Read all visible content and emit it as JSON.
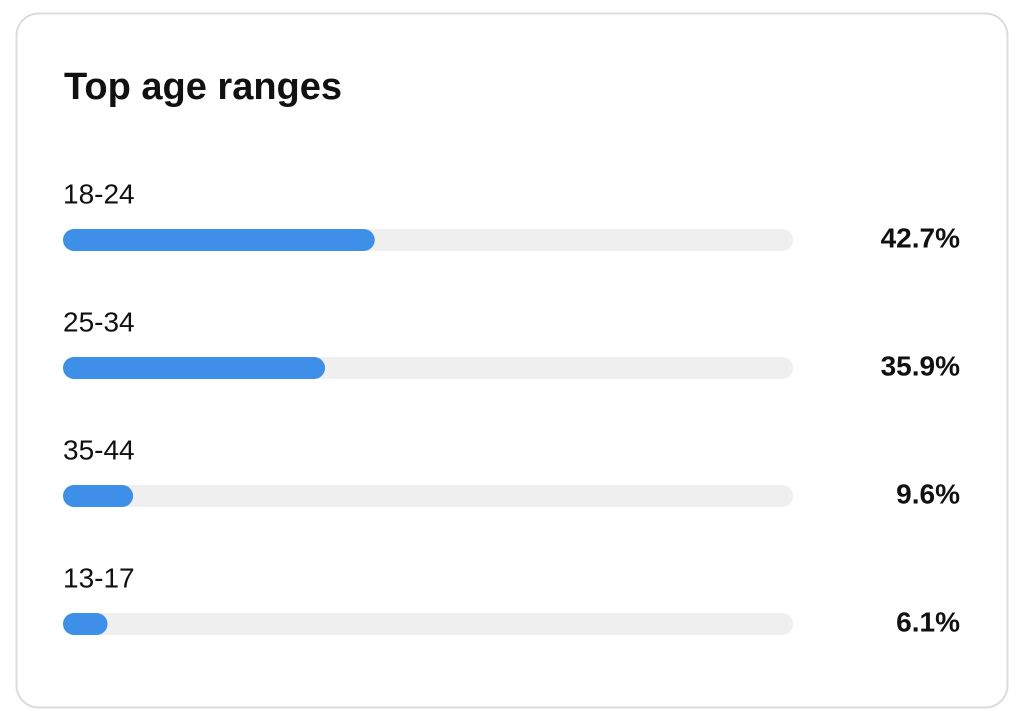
{
  "chart_data": {
    "type": "bar",
    "orientation": "horizontal",
    "title": "Top age ranges",
    "categories": [
      "18-24",
      "25-34",
      "35-44",
      "13-17"
    ],
    "values": [
      42.7,
      35.9,
      9.6,
      6.1
    ],
    "value_labels": [
      "42.7%",
      "35.9%",
      "9.6%",
      "6.1%"
    ],
    "color": "#3d8fe8",
    "xlim": [
      0,
      100
    ]
  }
}
